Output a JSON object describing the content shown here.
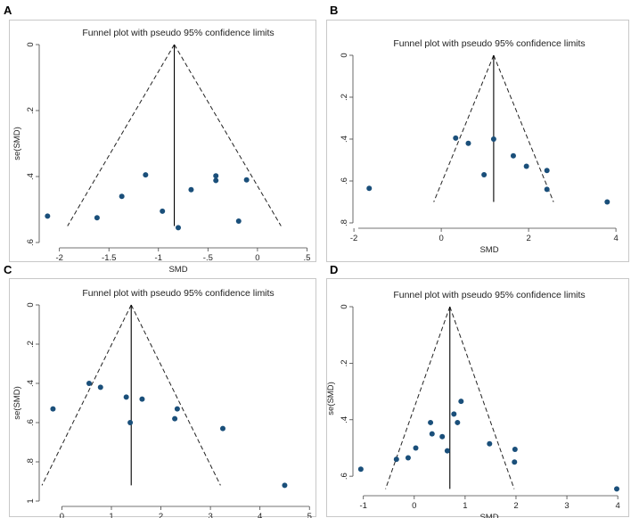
{
  "chart_data": [
    {
      "panel": "A",
      "type": "scatter",
      "title": "Funnel plot with pseudo 95% confidence limits",
      "xlabel": "SMD",
      "ylabel": "se(SMD)",
      "xlim": [
        -2.15,
        0.55
      ],
      "ylim": [
        0,
        0.6
      ],
      "y_reversed": true,
      "xticks": [
        -2,
        -1.5,
        -1,
        -0.5,
        0,
        0.5
      ],
      "xtick_labels": [
        "-2",
        "-1.5",
        "-1",
        "-.5",
        "0",
        ".5"
      ],
      "yticks": [
        0,
        0.2,
        0.4,
        0.6
      ],
      "ytick_labels": [
        "0",
        ".2",
        ".4",
        ".6"
      ],
      "summary_smd": -0.84,
      "funnel_max_se": 0.55,
      "points": [
        {
          "x": -2.12,
          "y": 0.52
        },
        {
          "x": -1.62,
          "y": 0.525
        },
        {
          "x": -1.37,
          "y": 0.46
        },
        {
          "x": -1.13,
          "y": 0.395
        },
        {
          "x": -0.96,
          "y": 0.505
        },
        {
          "x": -0.8,
          "y": 0.555
        },
        {
          "x": -0.67,
          "y": 0.44
        },
        {
          "x": -0.42,
          "y": 0.398
        },
        {
          "x": -0.42,
          "y": 0.412
        },
        {
          "x": -0.19,
          "y": 0.535
        },
        {
          "x": -0.11,
          "y": 0.41
        }
      ]
    },
    {
      "panel": "B",
      "type": "scatter",
      "title": "Funnel plot with pseudo 95% confidence limits",
      "xlabel": "SMD",
      "ylabel": "",
      "xlim": [
        -1.9,
        4.1
      ],
      "ylim": [
        0,
        0.8
      ],
      "y_reversed": true,
      "xticks": [
        -2,
        0,
        2,
        4
      ],
      "xtick_labels": [
        "-2",
        "0",
        "2",
        "4"
      ],
      "yticks": [
        0,
        0.2,
        0.4,
        0.6,
        0.8
      ],
      "ytick_labels": [
        "0",
        ".2",
        ".4",
        ".6",
        ".8"
      ],
      "summary_smd": 1.2,
      "funnel_max_se": 0.7,
      "points": [
        {
          "x": -1.65,
          "y": 0.635
        },
        {
          "x": 0.33,
          "y": 0.395
        },
        {
          "x": 0.62,
          "y": 0.42
        },
        {
          "x": 0.98,
          "y": 0.57
        },
        {
          "x": 1.2,
          "y": 0.4
        },
        {
          "x": 1.65,
          "y": 0.48
        },
        {
          "x": 1.95,
          "y": 0.53
        },
        {
          "x": 2.42,
          "y": 0.55
        },
        {
          "x": 2.42,
          "y": 0.64
        },
        {
          "x": 3.8,
          "y": 0.7
        }
      ]
    },
    {
      "panel": "C",
      "type": "scatter",
      "title": "Funnel plot with pseudo 95% confidence limits",
      "xlabel": "SMD",
      "ylabel": "se(SMD)",
      "xlim": [
        -0.35,
        5.05
      ],
      "ylim": [
        0,
        1
      ],
      "y_reversed": true,
      "xticks": [
        0,
        1,
        2,
        3,
        4,
        5
      ],
      "xtick_labels": [
        "0",
        "1",
        "2",
        "3",
        "4",
        "5"
      ],
      "yticks": [
        0,
        0.2,
        0.4,
        0.6,
        0.8,
        1
      ],
      "ytick_labels": [
        "0",
        ".2",
        ".4",
        ".6",
        ".8",
        "1"
      ],
      "summary_smd": 1.4,
      "funnel_max_se": 0.92,
      "points": [
        {
          "x": -0.18,
          "y": 0.53
        },
        {
          "x": 0.55,
          "y": 0.4
        },
        {
          "x": 0.78,
          "y": 0.42
        },
        {
          "x": 1.3,
          "y": 0.47
        },
        {
          "x": 1.38,
          "y": 0.6
        },
        {
          "x": 1.62,
          "y": 0.48
        },
        {
          "x": 2.28,
          "y": 0.58
        },
        {
          "x": 2.33,
          "y": 0.53
        },
        {
          "x": 3.25,
          "y": 0.63
        },
        {
          "x": 4.5,
          "y": 0.92
        }
      ]
    },
    {
      "panel": "D",
      "type": "scatter",
      "title": "Funnel plot with pseudo 95% confidence limits",
      "xlabel": "SMD",
      "ylabel": "se(SMD)",
      "xlim": [
        -1.1,
        4.05
      ],
      "ylim": [
        0,
        0.65
      ],
      "y_reversed": true,
      "xticks": [
        -1,
        0,
        1,
        2,
        3,
        4
      ],
      "xtick_labels": [
        "-1",
        "0",
        "1",
        "2",
        "3",
        "4"
      ],
      "yticks": [
        0,
        0.2,
        0.4,
        0.6
      ],
      "ytick_labels": [
        "0",
        ".2",
        ".4",
        ".6"
      ],
      "summary_smd": 0.7,
      "funnel_max_se": 0.645,
      "points": [
        {
          "x": -1.05,
          "y": 0.575
        },
        {
          "x": -0.35,
          "y": 0.54
        },
        {
          "x": -0.12,
          "y": 0.535
        },
        {
          "x": 0.03,
          "y": 0.5
        },
        {
          "x": 0.32,
          "y": 0.41
        },
        {
          "x": 0.35,
          "y": 0.45
        },
        {
          "x": 0.55,
          "y": 0.46
        },
        {
          "x": 0.65,
          "y": 0.51
        },
        {
          "x": 0.78,
          "y": 0.38
        },
        {
          "x": 0.85,
          "y": 0.41
        },
        {
          "x": 0.92,
          "y": 0.335
        },
        {
          "x": 1.48,
          "y": 0.485
        },
        {
          "x": 1.98,
          "y": 0.505
        },
        {
          "x": 1.97,
          "y": 0.55
        },
        {
          "x": 3.98,
          "y": 0.645
        }
      ]
    }
  ]
}
